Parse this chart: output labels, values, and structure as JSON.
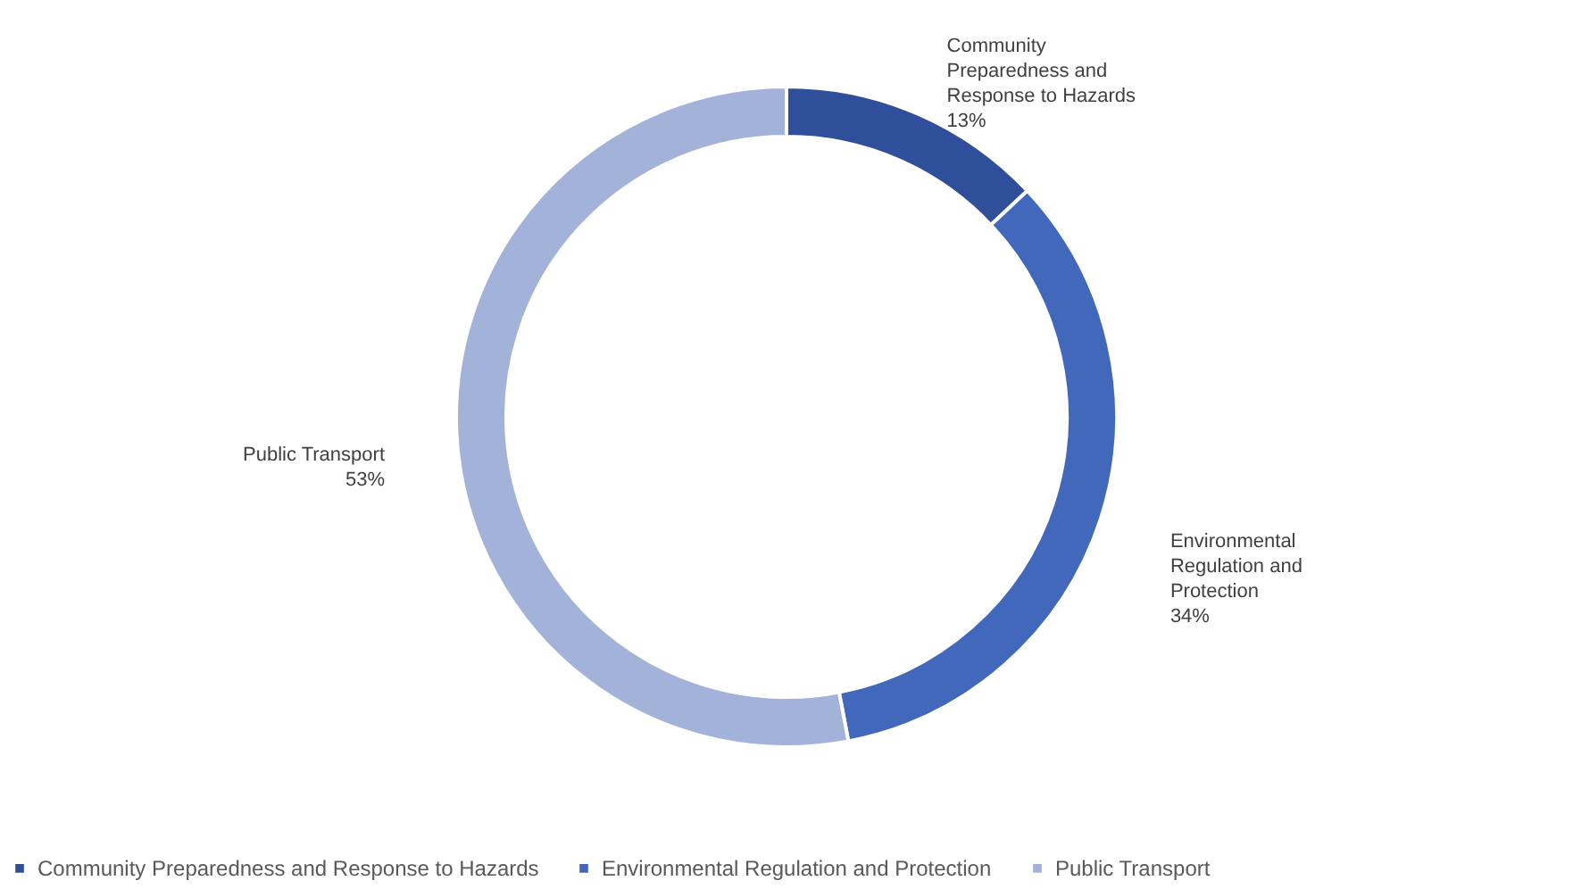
{
  "chart_data": {
    "type": "donut",
    "categories": [
      "Community Preparedness and Response to Hazards",
      "Environmental Regulation and Protection",
      "Public Transport"
    ],
    "values": [
      13,
      34,
      53
    ],
    "colors": [
      "#2f4f9b",
      "#4268bb",
      "#a3b2d8"
    ],
    "value_labels": [
      "13%",
      "34%",
      "53%"
    ],
    "legend": "bottom"
  }
}
